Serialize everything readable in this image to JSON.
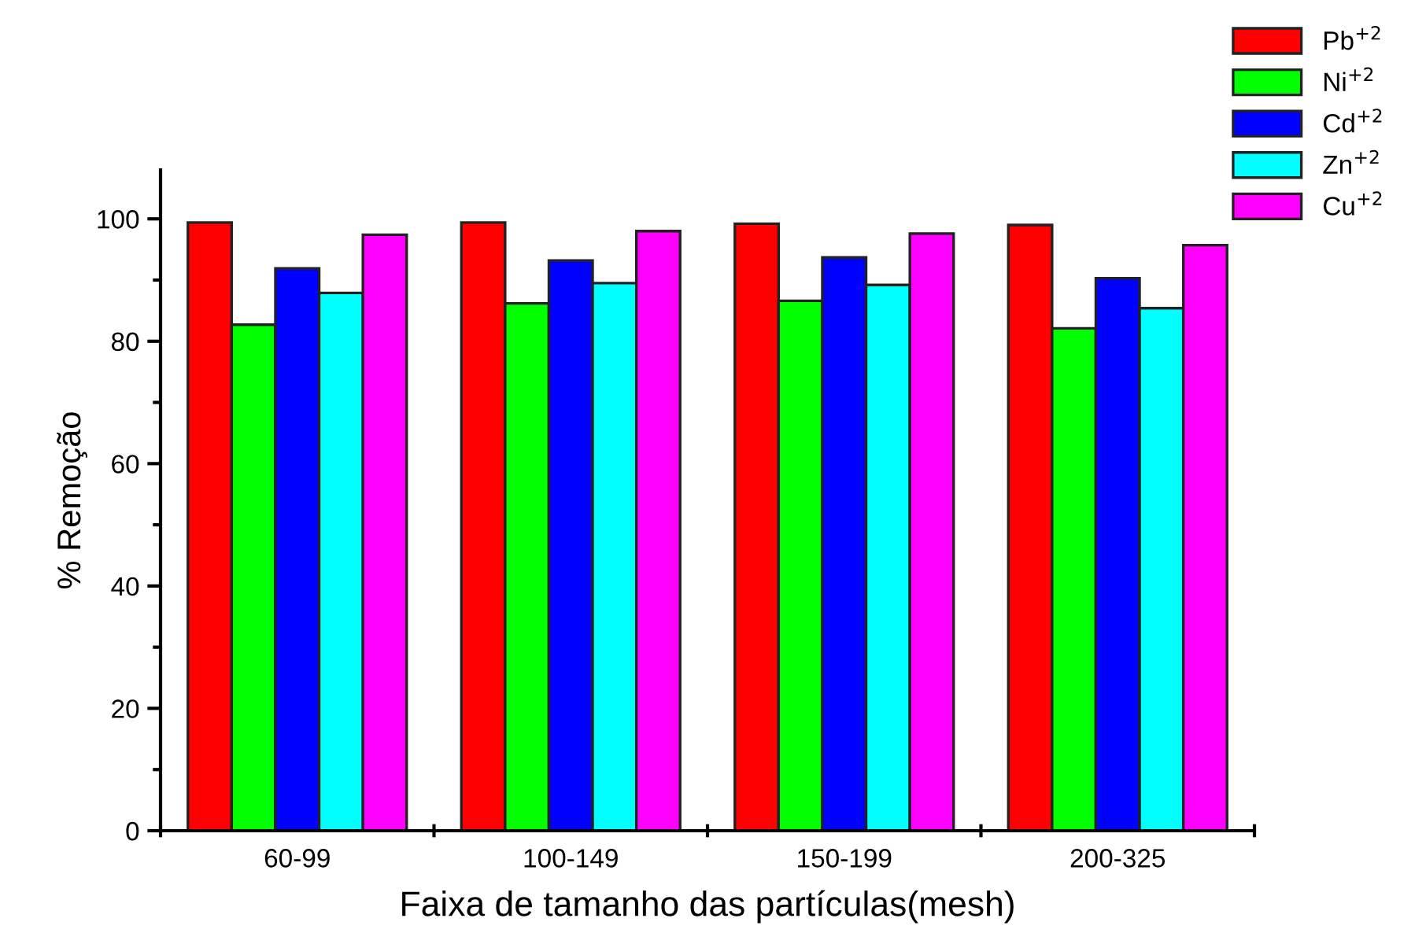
{
  "chart_data": {
    "type": "bar",
    "xlabel": "Faixa de tamanho das partículas(mesh)",
    "ylabel": "% Remoção",
    "categories": [
      "60-99",
      "100-149",
      "150-199",
      "200-325"
    ],
    "series": [
      {
        "name": "Pb$^{+2}$",
        "color": "#ff0000",
        "values": [
          99.4,
          99.4,
          99.2,
          99.0
        ]
      },
      {
        "name": "Ni$^{+2}$",
        "color": "#00ff00",
        "values": [
          82.7,
          86.2,
          86.6,
          82.1
        ]
      },
      {
        "name": "Cd$^{+2}$",
        "color": "#0000ff",
        "values": [
          91.9,
          93.2,
          93.7,
          90.3
        ]
      },
      {
        "name": "Zn$^{+2}$",
        "color": "#00ffff",
        "values": [
          87.9,
          89.5,
          89.2,
          85.4
        ]
      },
      {
        "name": "Cu$^{+2}$",
        "color": "#ff00ff",
        "values": [
          97.4,
          98.0,
          97.6,
          95.7
        ]
      }
    ],
    "ylim": [
      0,
      108
    ],
    "yticks": [
      0,
      {
        "value": 10,
        "label": null
      },
      20,
      {
        "value": 30,
        "label": null
      },
      40,
      {
        "value": 50,
        "label": null
      },
      60,
      {
        "value": 70,
        "label": null
      },
      80,
      {
        "value": 90,
        "label": null
      },
      100
    ],
    "grid": false,
    "legend": "top right"
  }
}
